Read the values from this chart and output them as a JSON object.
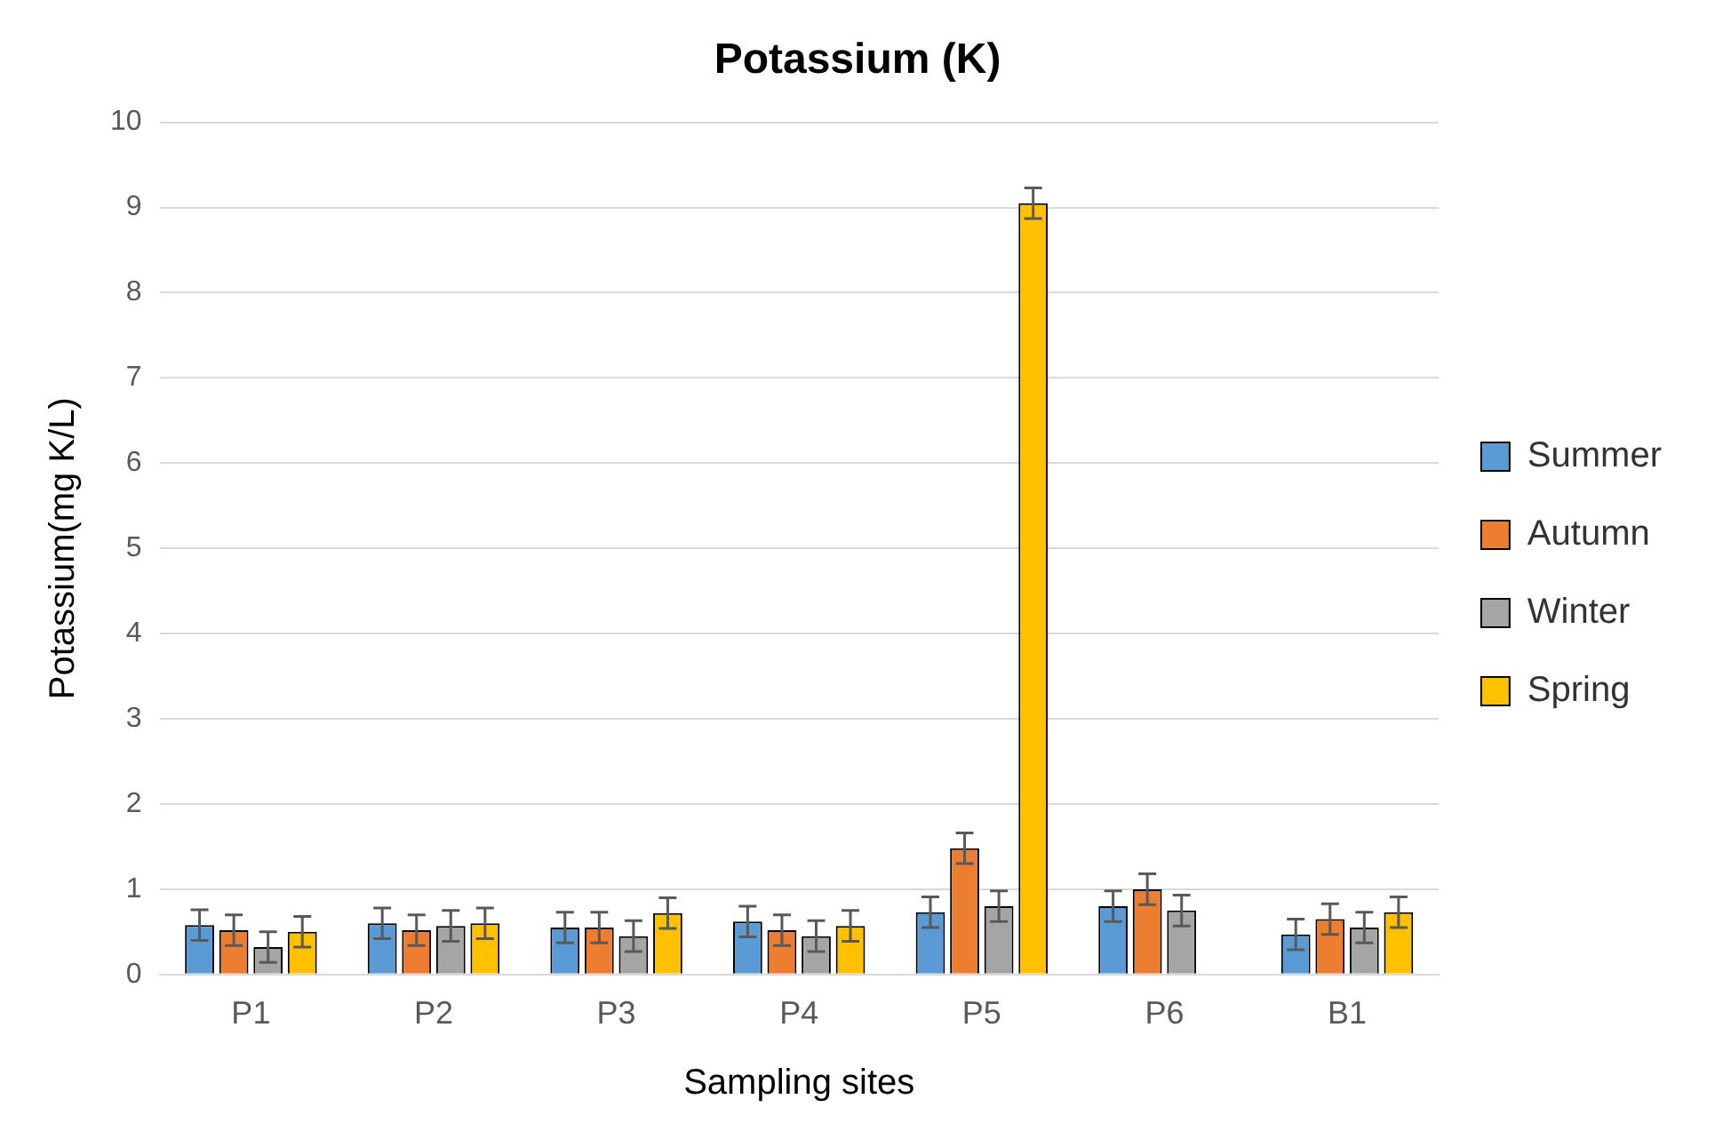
{
  "chart_data": {
    "type": "bar",
    "title": "Potassium (K)",
    "xlabel": "Sampling sites",
    "ylabel": "Potassium(mg K/L)",
    "categories": [
      "P1",
      "P2",
      "P3",
      "P4",
      "P5",
      "P6",
      "B1"
    ],
    "series": [
      {
        "name": "Summer",
        "color": "#5b9bd5",
        "values": [
          0.58,
          0.6,
          0.55,
          0.62,
          0.73,
          0.8,
          0.47
        ],
        "errors": [
          0.18,
          0.18,
          0.18,
          0.18,
          0.18,
          0.18,
          0.18
        ]
      },
      {
        "name": "Autumn",
        "color": "#ed7d31",
        "values": [
          0.52,
          0.52,
          0.55,
          0.52,
          1.48,
          1.0,
          0.65
        ],
        "errors": [
          0.18,
          0.18,
          0.18,
          0.18,
          0.18,
          0.18,
          0.18
        ]
      },
      {
        "name": "Winter",
        "color": "#a5a5a5",
        "values": [
          0.32,
          0.57,
          0.45,
          0.45,
          0.8,
          0.75,
          0.55
        ],
        "errors": [
          0.18,
          0.18,
          0.18,
          0.18,
          0.18,
          0.18,
          0.18
        ]
      },
      {
        "name": "Spring",
        "color": "#ffc000",
        "values": [
          0.5,
          0.6,
          0.72,
          0.57,
          9.05,
          null,
          0.73
        ],
        "errors": [
          0.18,
          0.18,
          0.18,
          0.18,
          0.18,
          null,
          0.18
        ]
      }
    ],
    "ylim": [
      0,
      10
    ],
    "yticks": [
      0,
      1,
      2,
      3,
      4,
      5,
      6,
      7,
      8,
      9,
      10
    ],
    "grid": "y",
    "legend": "right"
  }
}
